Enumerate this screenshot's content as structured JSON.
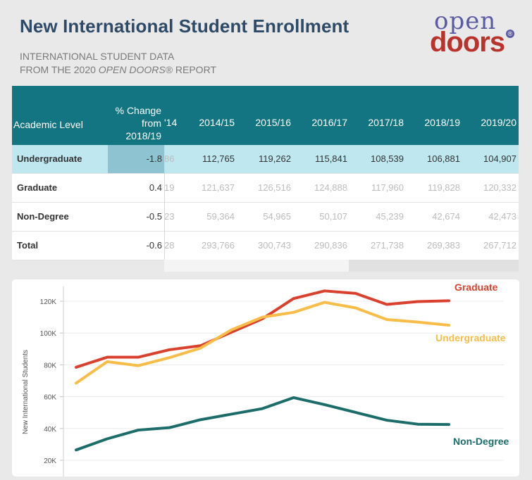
{
  "header": {
    "title": "New International Student Enrollment",
    "subtitle_line1": "INTERNATIONAL STUDENT DATA",
    "subtitle_line2_prefix": "FROM THE 2020 ",
    "subtitle_line2_italic": "OPEN DOORS®",
    "subtitle_line2_suffix": " REPORT"
  },
  "logo": {
    "top": "open",
    "bottom": "doors",
    "mark": "®"
  },
  "table": {
    "col_academic": "Academic Level",
    "col_pct_line1": "% Change",
    "col_pct_line2": "from",
    "col_pct_line3": "2018/19",
    "col_clipped": "'14",
    "years": [
      "2014/15",
      "2015/16",
      "2016/17",
      "2017/18",
      "2018/19",
      "2019/20"
    ],
    "rows": [
      {
        "label": "Undergraduate",
        "pct": "-1.8",
        "clip": "86",
        "values": [
          "112,765",
          "119,262",
          "115,841",
          "108,539",
          "106,881",
          "104,907"
        ]
      },
      {
        "label": "Graduate",
        "pct": "0.4",
        "clip": "19",
        "values": [
          "121,637",
          "126,516",
          "124,888",
          "117,960",
          "119,828",
          "120,332"
        ]
      },
      {
        "label": "Non-Degree",
        "pct": "-0.5",
        "clip": "23",
        "values": [
          "59,364",
          "54,965",
          "50,107",
          "45,239",
          "42,674",
          "42,473"
        ]
      },
      {
        "label": "Total",
        "pct": "-0.6",
        "clip": "28",
        "values": [
          "293,766",
          "300,743",
          "290,836",
          "271,738",
          "269,383",
          "267,712"
        ]
      }
    ]
  },
  "chart_data": {
    "type": "line",
    "ylabel": "New International Students",
    "ylim": [
      16000,
      128000
    ],
    "yticks": [
      20000,
      40000,
      60000,
      80000,
      100000,
      120000
    ],
    "ytick_labels": [
      "20K",
      "40K",
      "60K",
      "80K",
      "100K",
      "120K"
    ],
    "grid": true,
    "series": [
      {
        "name": "Graduate",
        "color": "#d9412e",
        "values": [
          78500,
          84800,
          84800,
          89500,
          92000,
          100500,
          109000,
          121700,
          126500,
          124900,
          118000,
          119800,
          120300
        ]
      },
      {
        "name": "Undergraduate",
        "color": "#f7bd48",
        "values": [
          68500,
          82000,
          79500,
          84500,
          90500,
          102000,
          110000,
          113000,
          119300,
          115800,
          108500,
          106900,
          104900
        ]
      },
      {
        "name": "Non-Degree",
        "color": "#1c6d6a",
        "values": [
          26500,
          33500,
          39000,
          40500,
          45500,
          49000,
          52500,
          59400,
          55000,
          50100,
          45200,
          42700,
          42500
        ]
      }
    ]
  }
}
